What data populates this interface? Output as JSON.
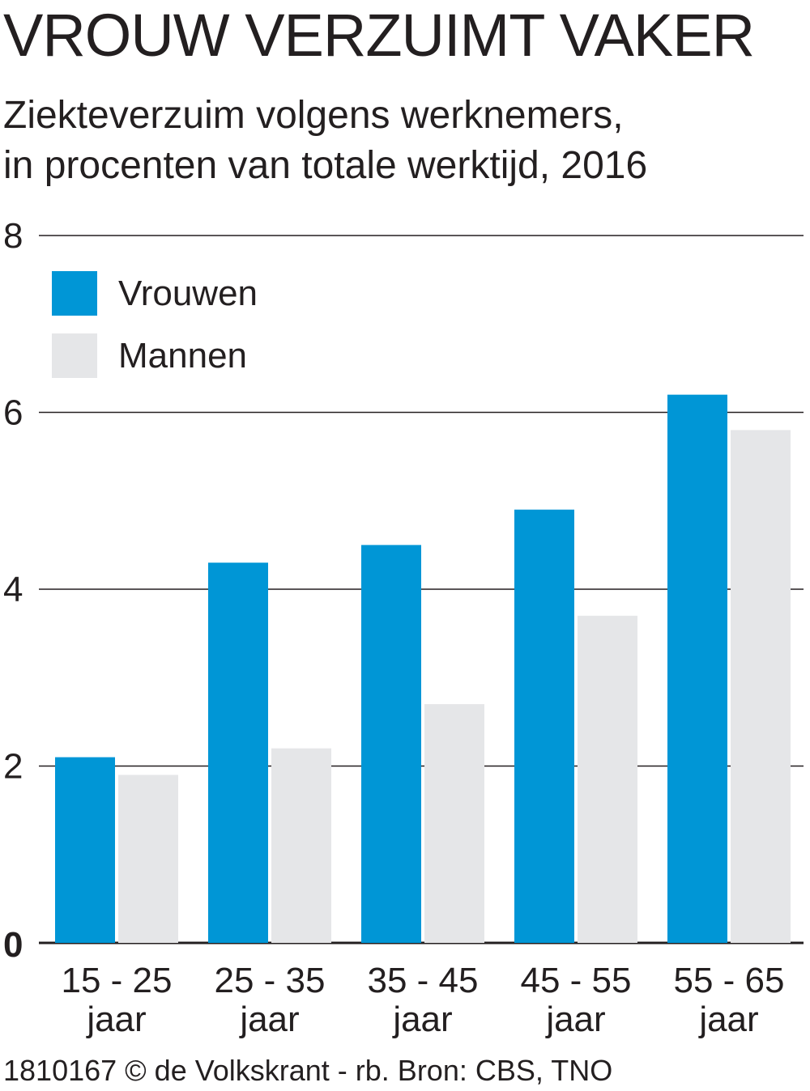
{
  "header": {
    "title": "VROUW VERZUIMT VAKER",
    "subtitle_line1": "Ziekteverzuim volgens werknemers,",
    "subtitle_line2": "in procenten van totale werktijd, 2016"
  },
  "footer": {
    "source": "1810167 © de Volkskrant - rb. Bron: CBS, TNO"
  },
  "colors": {
    "vrouwen": "#0096d6",
    "mannen": "#e5e6e8",
    "gridline": "#231f20",
    "text": "#231f20"
  },
  "chart_data": {
    "type": "bar",
    "title": "VROUW VERZUIMT VAKER",
    "subtitle": "Ziekteverzuim volgens werknemers, in procenten van totale werktijd, 2016",
    "categories": [
      [
        "15 - 25",
        "jaar"
      ],
      [
        "25 - 35",
        "jaar"
      ],
      [
        "35 - 45",
        "jaar"
      ],
      [
        "45 - 55",
        "jaar"
      ],
      [
        "55 - 65",
        "jaar"
      ]
    ],
    "series": [
      {
        "name": "Vrouwen",
        "values": [
          2.1,
          4.3,
          4.5,
          4.9,
          6.2
        ]
      },
      {
        "name": "Mannen",
        "values": [
          1.9,
          2.2,
          2.7,
          3.7,
          5.8
        ]
      }
    ],
    "yticks": [
      "0",
      "2",
      "4",
      "6",
      "8"
    ],
    "ylim": [
      0,
      8
    ],
    "xlabel": "",
    "ylabel": "",
    "grid": true,
    "legend": "top-left"
  }
}
